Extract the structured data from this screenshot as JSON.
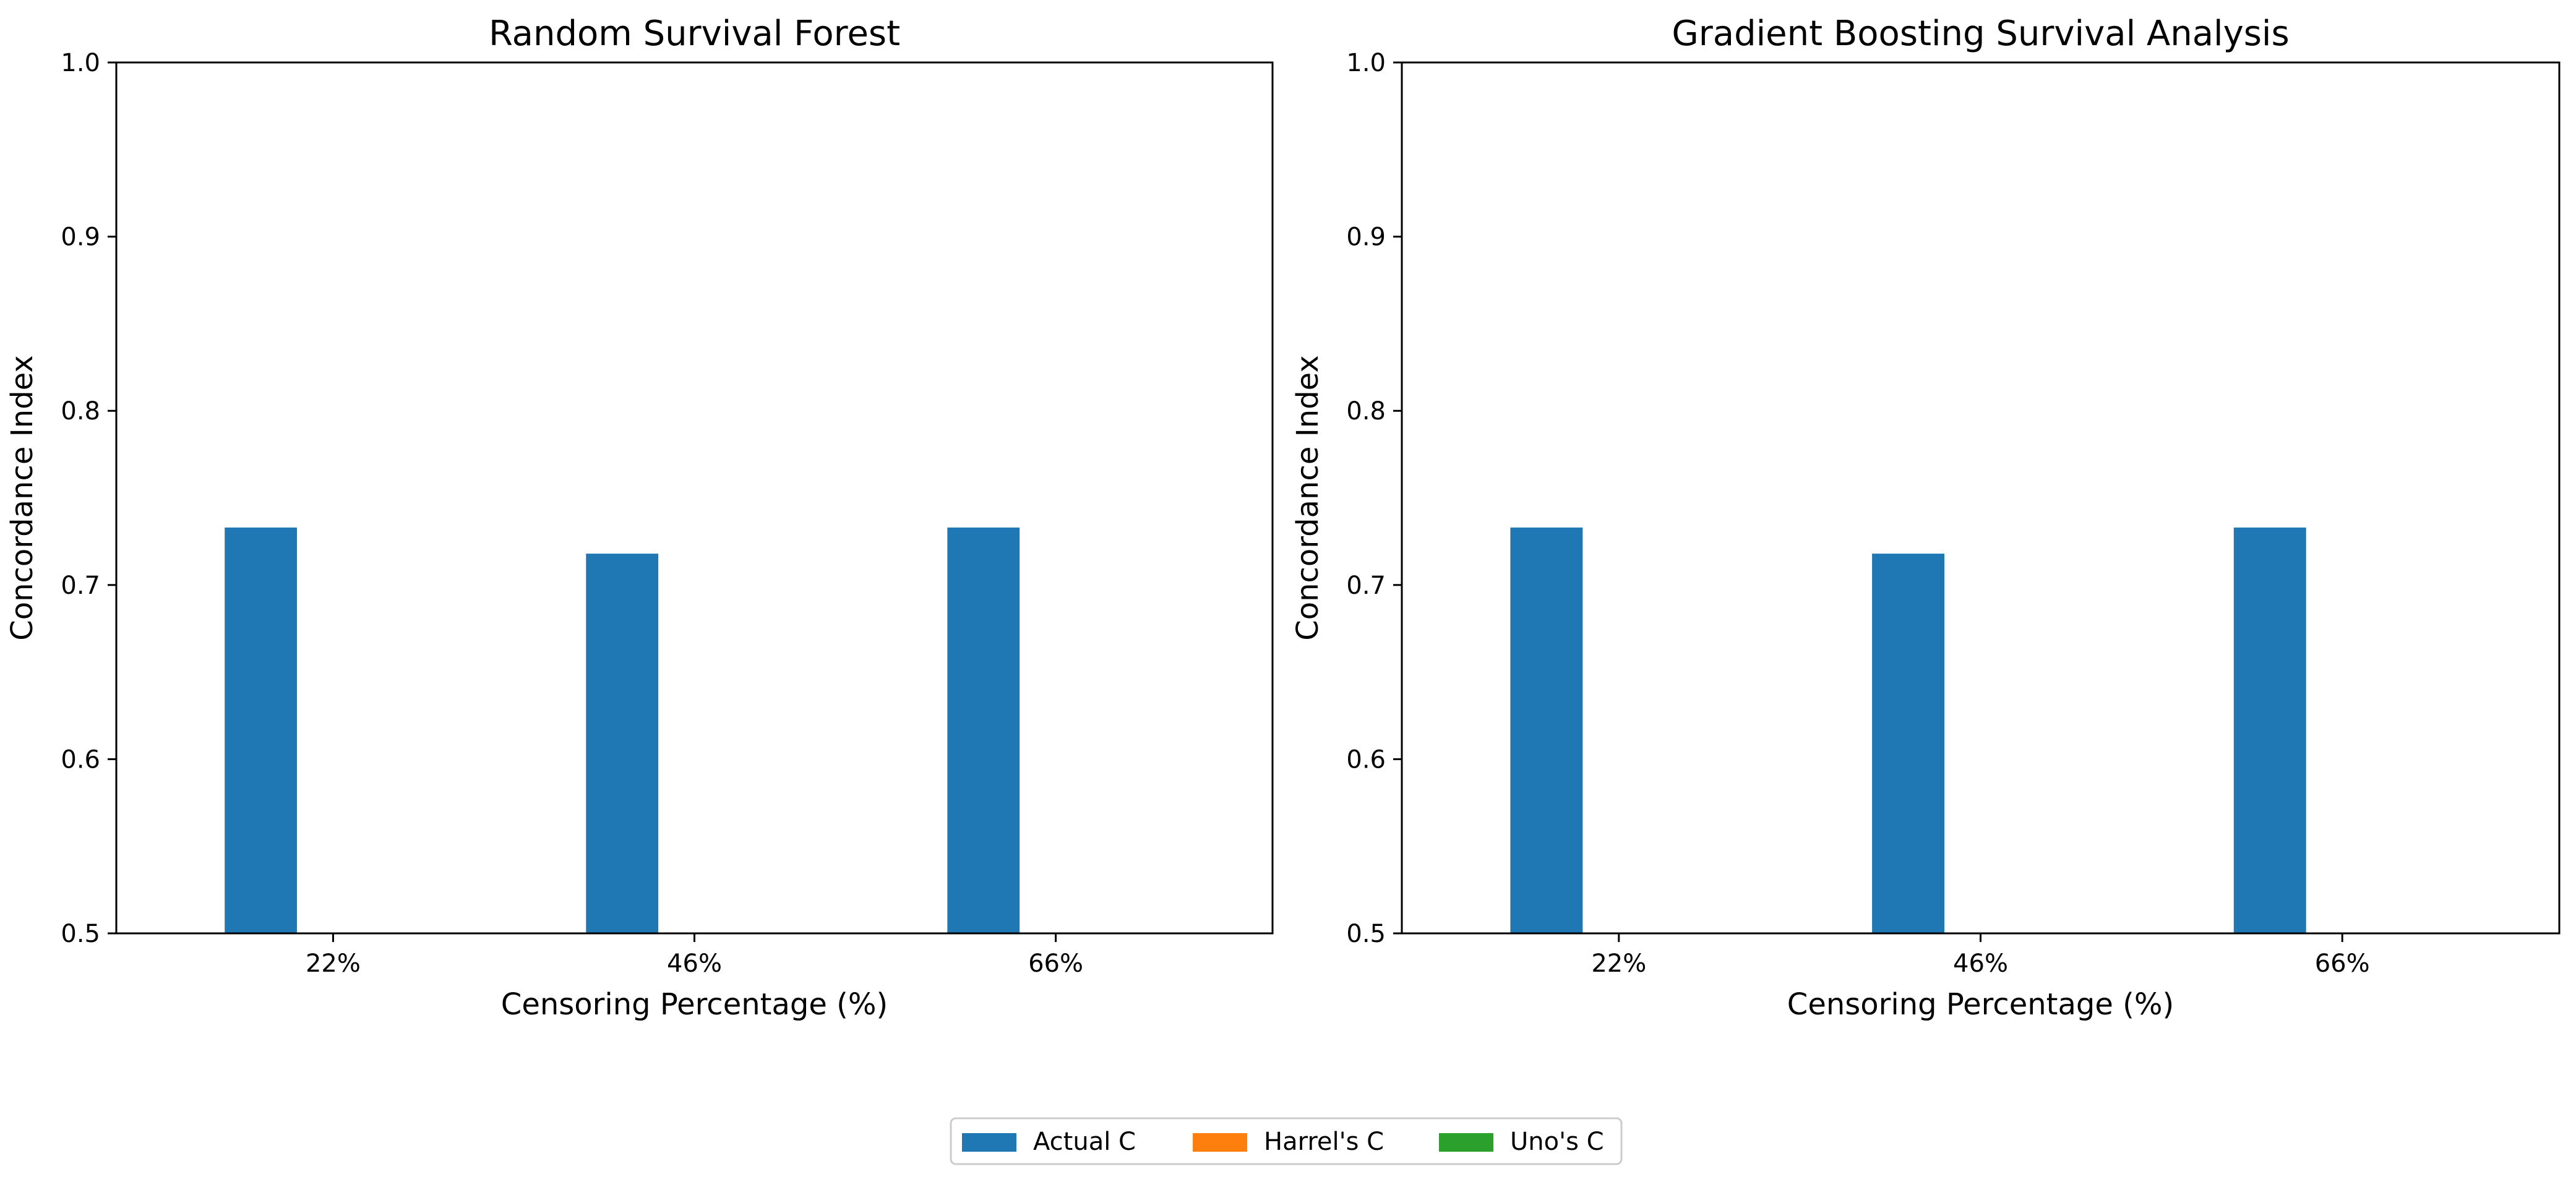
{
  "chart_data": [
    {
      "type": "bar",
      "title": "Random Survival Forest",
      "xlabel": "Censoring Percentage (%)",
      "ylabel": "Concordance Index",
      "categories": [
        "22%",
        "46%",
        "66%"
      ],
      "ylim": [
        0.5,
        1.0
      ],
      "yticks": [
        "0.5",
        "0.6",
        "0.7",
        "0.8",
        "0.9",
        "1.0"
      ],
      "grid": false,
      "series": [
        {
          "name": "Actual C",
          "values": [
            0.733,
            0.718,
            0.733
          ],
          "color": "#1f77b4"
        },
        {
          "name": "Harrel's C",
          "values": [
            null,
            null,
            null
          ],
          "color": "#ff7f0e"
        },
        {
          "name": "Uno's C",
          "values": [
            null,
            null,
            null
          ],
          "color": "#2ca02c"
        }
      ]
    },
    {
      "type": "bar",
      "title": "Gradient Boosting Survival Analysis",
      "xlabel": "Censoring Percentage (%)",
      "ylabel": "Concordance Index",
      "categories": [
        "22%",
        "46%",
        "66%"
      ],
      "ylim": [
        0.5,
        1.0
      ],
      "yticks": [
        "0.5",
        "0.6",
        "0.7",
        "0.8",
        "0.9",
        "1.0"
      ],
      "grid": false,
      "series": [
        {
          "name": "Actual C",
          "values": [
            0.733,
            0.718,
            0.733
          ],
          "color": "#1f77b4"
        },
        {
          "name": "Harrel's C",
          "values": [
            null,
            null,
            null
          ],
          "color": "#ff7f0e"
        },
        {
          "name": "Uno's C",
          "values": [
            null,
            null,
            null
          ],
          "color": "#2ca02c"
        }
      ]
    }
  ],
  "legend": {
    "placement": "bottom-center",
    "items": [
      {
        "label": "Actual C",
        "color": "#1f77b4"
      },
      {
        "label": "Harrel's C",
        "color": "#ff7f0e"
      },
      {
        "label": "Uno's C",
        "color": "#2ca02c"
      }
    ]
  }
}
